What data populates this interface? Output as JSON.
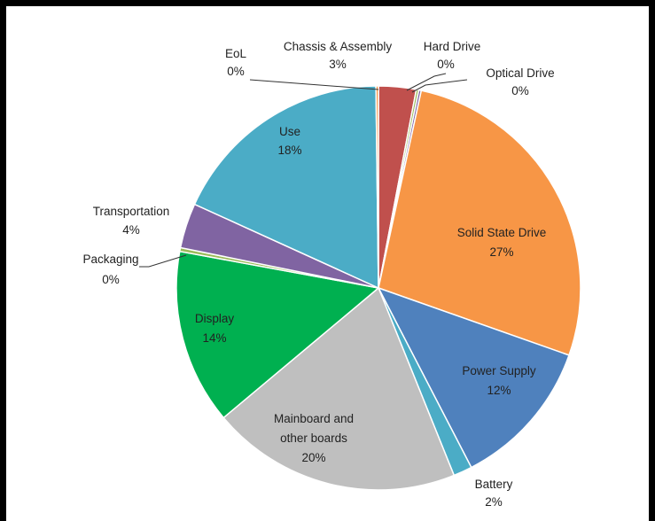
{
  "chart_data": {
    "type": "pie",
    "title": "",
    "slices": [
      {
        "name": "Chassis & Assembly",
        "value": 3,
        "label": "3%",
        "color": "#c0504d"
      },
      {
        "name": "Hard Drive",
        "value": 0.2,
        "label": "0%",
        "color": "#9bbb59"
      },
      {
        "name": "Optical Drive",
        "value": 0.2,
        "label": "0%",
        "color": "#8064a2"
      },
      {
        "name": "Solid State Drive",
        "value": 27,
        "label": "27%",
        "color": "#f79646"
      },
      {
        "name": "Power Supply",
        "value": 12,
        "label": "12%",
        "color": "#4f81bd"
      },
      {
        "name": "Battery",
        "value": 1.5,
        "label": "2%",
        "color": "#4bacc6"
      },
      {
        "name": "Mainboard and other boards",
        "value": 20,
        "label": "20%",
        "color": "#bfbfbf"
      },
      {
        "name": "Display",
        "value": 14,
        "label": "14%",
        "color": "#00b050"
      },
      {
        "name": "Packaging",
        "value": 0.3,
        "label": "0%",
        "color": "#9bbb59"
      },
      {
        "name": "Transportation",
        "value": 3.6,
        "label": "4%",
        "color": "#8064a2"
      },
      {
        "name": "Use",
        "value": 18,
        "label": "18%",
        "color": "#4bacc6"
      },
      {
        "name": "EoL",
        "value": 0.2,
        "label": "0%",
        "color": "#f79646"
      }
    ],
    "legend": "none"
  }
}
